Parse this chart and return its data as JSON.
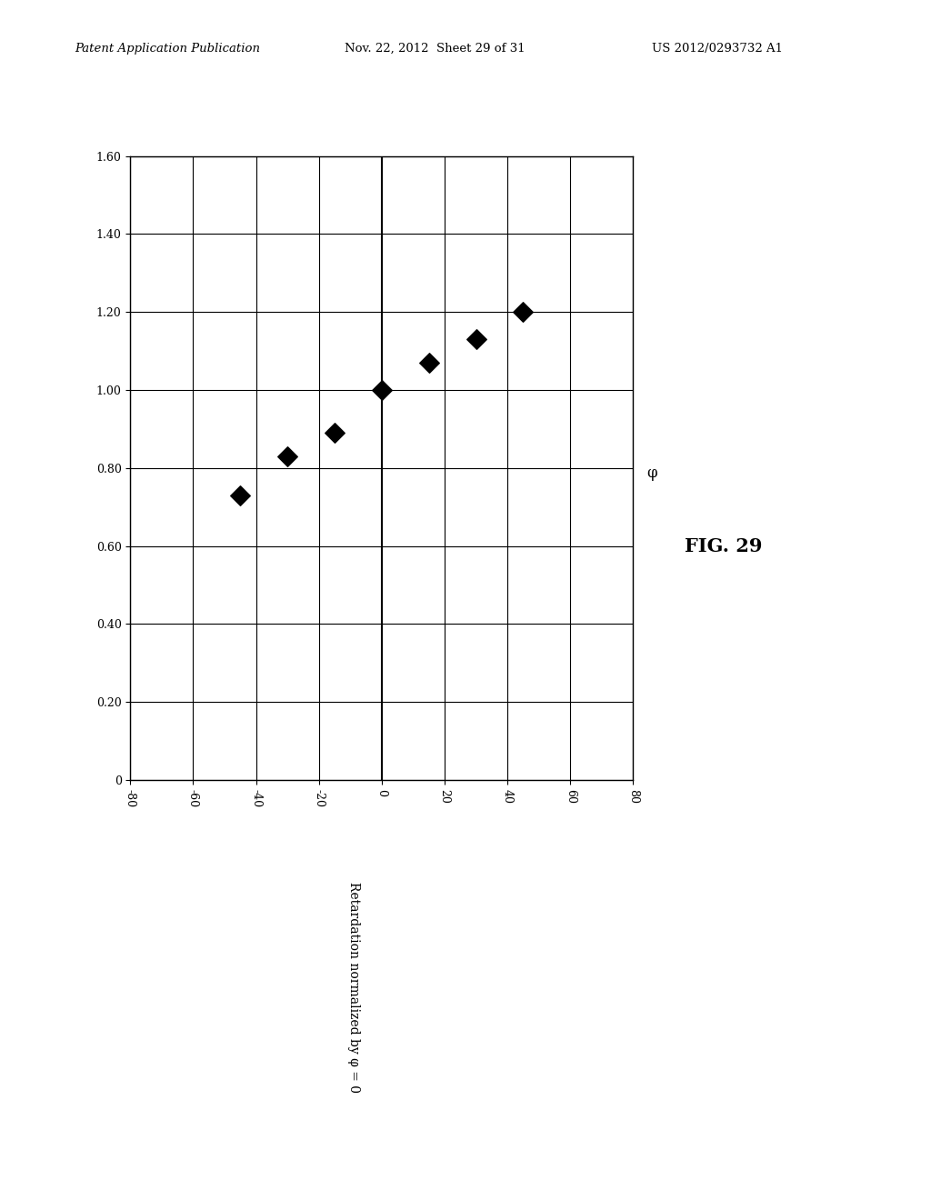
{
  "title": "FIG. 29",
  "xlabel": "Retardation normalized by φ = 0",
  "ylabel": "φ",
  "x_axis_values": [
    0,
    0.2,
    0.4,
    0.6,
    0.8,
    1.0,
    1.2,
    1.4,
    1.6
  ],
  "y_axis_values": [
    -80,
    -60,
    -40,
    -20,
    0,
    20,
    40,
    60,
    80
  ],
  "plot_xlim": [
    -80,
    80
  ],
  "plot_ylim": [
    0,
    1.6
  ],
  "data_phi": [
    -45,
    -30,
    -15,
    0,
    15,
    30,
    45
  ],
  "data_retardation": [
    0.73,
    0.83,
    0.89,
    1.0,
    1.07,
    1.13,
    1.2
  ],
  "marker_color": "#000000",
  "marker_size": 120,
  "bg_color": "#ffffff",
  "header_left": "Patent Application Publication",
  "header_center": "Nov. 22, 2012  Sheet 29 of 31",
  "header_right": "US 2012/0293732 A1"
}
